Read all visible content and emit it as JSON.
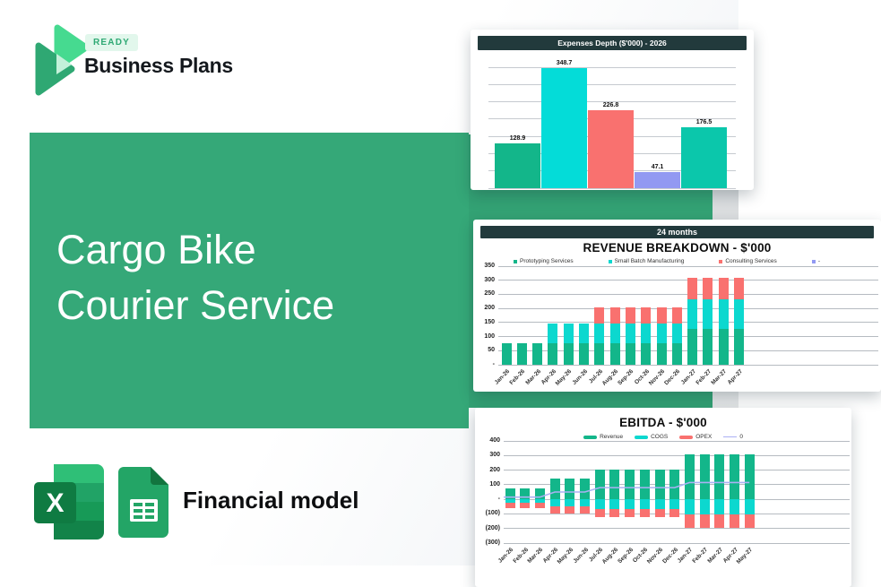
{
  "brand": {
    "badge": "READY",
    "name": "Business Plans"
  },
  "hero": {
    "title": "Cargo Bike Courier Service",
    "line1": "Cargo Bike",
    "line2": "Courier Service"
  },
  "product": {
    "label": "Financial model"
  },
  "colors": {
    "hero_green": "#35a878",
    "header_dark": "#223a3c",
    "series_green": "#13b68a",
    "series_cyan": "#0cd8cf",
    "series_red": "#f9716f",
    "series_periwinkle": "#9299f2",
    "series_teal": "#0bc7ab",
    "ebitda_line": "#abb1f4"
  },
  "chart_data": [
    {
      "type": "bar",
      "title": "Expenses Depth ($'000) - 2026",
      "values": [
        128.9,
        348.7,
        226.8,
        47.1,
        176.5
      ],
      "bar_colors": [
        "#13b68a",
        "#04dcd8",
        "#f9716f",
        "#9299f2",
        "#0bc7ab"
      ],
      "ylim": [
        0,
        350
      ],
      "grid_step": 50,
      "grid": true,
      "legend_position": "none"
    },
    {
      "type": "bar",
      "variant": "stacked",
      "header_badge": "24 months",
      "title": "REVENUE BREAKDOWN - $'000",
      "categories": [
        "Jan-26",
        "Feb-26",
        "Mar-26",
        "Apr-26",
        "May-26",
        "Jun-26",
        "Jul-26",
        "Aug-26",
        "Sep-26",
        "Oct-26",
        "Nov-26",
        "Dec-26",
        "Jan-27",
        "Feb-27",
        "Mar-27",
        "Apr-27"
      ],
      "series": [
        {
          "name": "Prototyping Services",
          "color": "#13b68a",
          "values": [
            75,
            75,
            75,
            75,
            75,
            75,
            75,
            75,
            75,
            75,
            75,
            75,
            128,
            128,
            128,
            128
          ]
        },
        {
          "name": "Small Batch Manufacturing",
          "color": "#0cd8cf",
          "values": [
            0,
            0,
            0,
            70,
            70,
            70,
            70,
            70,
            70,
            70,
            70,
            70,
            104,
            104,
            104,
            104
          ]
        },
        {
          "name": "Consulting Services",
          "color": "#f9716f",
          "values": [
            0,
            0,
            0,
            0,
            0,
            0,
            60,
            60,
            60,
            60,
            60,
            60,
            76,
            76,
            76,
            76
          ]
        }
      ],
      "legend": [
        {
          "label": "Prototyping Services",
          "color": "#13b68a"
        },
        {
          "label": "Small Batch Manufacturing",
          "color": "#0cd8cf"
        },
        {
          "label": "Consulting Services",
          "color": "#f9716f"
        },
        {
          "label": "-",
          "color": "#9299f2"
        }
      ],
      "ytick_labels": [
        "350",
        "300",
        "250",
        "200",
        "150",
        "100",
        "50",
        "-"
      ],
      "ylim": [
        0,
        350
      ],
      "grid": true,
      "legend_position": "top"
    },
    {
      "type": "combo",
      "title": "EBITDA - $'000",
      "categories": [
        "Jan-26",
        "Feb-26",
        "Mar-26",
        "Apr-26",
        "May-26",
        "Jun-26",
        "Jul-26",
        "Aug-26",
        "Sep-26",
        "Oct-26",
        "Nov-26",
        "Dec-26",
        "Jan-27",
        "Feb-27",
        "Mar-27",
        "Apr-27",
        "May-27"
      ],
      "series": [
        {
          "name": "Revenue",
          "kind": "bar",
          "color": "#13b68a",
          "values": [
            75,
            75,
            75,
            145,
            145,
            145,
            205,
            205,
            205,
            205,
            205,
            205,
            310,
            310,
            310,
            310,
            310
          ]
        },
        {
          "name": "COGS",
          "kind": "bar",
          "color": "#0cd8cf",
          "values": [
            -25,
            -25,
            -25,
            -50,
            -50,
            -50,
            -65,
            -65,
            -65,
            -65,
            -65,
            -65,
            -105,
            -105,
            -105,
            -105,
            -105
          ]
        },
        {
          "name": "OPEX",
          "kind": "bar",
          "color": "#f9716f",
          "values": [
            -35,
            -35,
            -35,
            -45,
            -45,
            -45,
            -60,
            -60,
            -60,
            -60,
            -60,
            -60,
            -90,
            -90,
            -90,
            -90,
            -90
          ]
        },
        {
          "name": "0",
          "kind": "line",
          "color": "#abb1f4",
          "values": [
            15,
            15,
            15,
            50,
            50,
            50,
            80,
            80,
            80,
            80,
            80,
            80,
            115,
            115,
            115,
            115,
            115
          ]
        }
      ],
      "ytick_labels": [
        "400",
        "300",
        "200",
        "100",
        "-",
        "(100)",
        "(200)",
        "(300)"
      ],
      "ylim": [
        -300,
        400
      ],
      "grid": true,
      "legend_position": "top"
    }
  ]
}
